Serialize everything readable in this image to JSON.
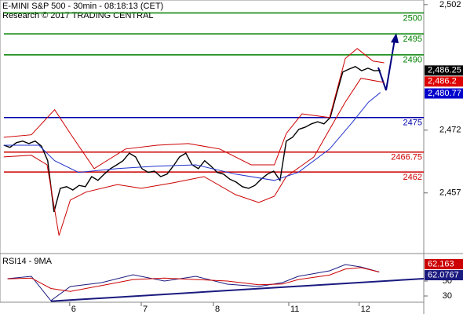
{
  "chart_data": {
    "type": "financial",
    "title": "E-MINI S&P 500 - 30min - 08:18:13 (CET)",
    "subtitle": "Research © 2017 TRADING CENTRAL",
    "xlim": [
      -0.6,
      66.9
    ],
    "xticks": [
      {
        "value": 10.5,
        "label": "6"
      },
      {
        "value": 21.9,
        "label": "7"
      },
      {
        "value": 33.4,
        "label": "8"
      },
      {
        "value": 45.4,
        "label": "11"
      },
      {
        "value": 56.6,
        "label": "12"
      }
    ],
    "ylim": [
      2442.7,
      2503.1
    ],
    "yticks": [
      {
        "value": 2502,
        "label": "2,502"
      },
      {
        "value": 2472,
        "label": "2,472"
      },
      {
        "value": 2457,
        "label": "2,457"
      }
    ],
    "levels": [
      {
        "value": 2500,
        "color": "#008000"
      },
      {
        "value": 2495,
        "color": "#008000"
      },
      {
        "value": 2490,
        "color": "#008000"
      },
      {
        "value": 2475,
        "color": "#0000aa"
      },
      {
        "value": 2466.75,
        "color": "#cc0000"
      },
      {
        "value": 2462,
        "color": "#cc0000"
      }
    ],
    "series": [
      {
        "name": "Price",
        "color": "#000000",
        "x": [
          0,
          1,
          2,
          3,
          4,
          5,
          6,
          7,
          8,
          9,
          10,
          11,
          12,
          13,
          14,
          15,
          16,
          17,
          18,
          19,
          20,
          21,
          22,
          23,
          24,
          25,
          26,
          27,
          28,
          29,
          30,
          31,
          32,
          33,
          34,
          35,
          36,
          37,
          38,
          39,
          40,
          41,
          42,
          43,
          44,
          45,
          46,
          47,
          48,
          49,
          50,
          51,
          52,
          53,
          54,
          55,
          56,
          57,
          58,
          59,
          60
        ],
        "values": [
          2468.4,
          2467.9,
          2469.0,
          2469.4,
          2468.8,
          2469.4,
          2468.2,
          2464.7,
          2452.5,
          2458.1,
          2458.5,
          2457.7,
          2458.8,
          2458.5,
          2460.9,
          2460.0,
          2461.5,
          2462.8,
          2463.7,
          2464.7,
          2466.5,
          2465.6,
          2462.8,
          2461.9,
          2462.2,
          2460.9,
          2461.5,
          2463.4,
          2465.6,
          2466.5,
          2463.7,
          2462.8,
          2464.7,
          2463.4,
          2461.9,
          2461.5,
          2460.3,
          2459.6,
          2458.5,
          2458.1,
          2458.8,
          2460.3,
          2461.5,
          2462.2,
          2460.0,
          2469.4,
          2470.3,
          2472.2,
          2472.7,
          2473.5,
          2474.0,
          2473.5,
          2475.0,
          2480.6,
          2485.9,
          2486.6,
          2487.2,
          2486.2,
          2486.8,
          2486.2,
          2486.25
        ]
      },
      {
        "name": "Upper band",
        "color": "#cc0000",
        "x": [
          0,
          4.4,
          8.1,
          10.6,
          14.4,
          19.4,
          24.4,
          29.4,
          34.4,
          39.4,
          43.1,
          45,
          47.5,
          51.9,
          54.4,
          56.3,
          58.8,
          60.6
        ],
        "values": [
          2470.3,
          2470.9,
          2476.9,
          2471.2,
          2462.8,
          2467.5,
          2468.4,
          2468.8,
          2467.5,
          2463.7,
          2463.7,
          2471.2,
          2475.9,
          2475.0,
          2489.1,
          2491.5,
          2488.5,
          2488.1
        ]
      },
      {
        "name": "Lower band",
        "color": "#cc0000",
        "x": [
          0,
          4.4,
          6.9,
          8.8,
          10.6,
          13.1,
          18.1,
          21.9,
          26.9,
          31.9,
          36.9,
          40.6,
          43.1,
          45,
          49.4,
          51.9,
          54.4,
          56.9,
          60.6
        ],
        "values": [
          2465.6,
          2466.0,
          2463.7,
          2446.8,
          2455.3,
          2457.2,
          2459.0,
          2458.1,
          2459.4,
          2460.9,
          2456.6,
          2454.7,
          2456.2,
          2460.9,
          2465.6,
          2472.2,
          2478.7,
          2484.4,
          2483.4
        ]
      },
      {
        "name": "Middle band",
        "color": "#2233cc",
        "x": [
          0,
          5.6,
          8.1,
          11.9,
          18.1,
          24.4,
          30.6,
          36.9,
          43.1,
          46.9,
          51.9,
          55.6,
          58.1,
          60
        ],
        "values": [
          2468.4,
          2468.4,
          2464.7,
          2461.9,
          2462.8,
          2463.4,
          2463.7,
          2461.5,
          2460.0,
          2461.9,
          2467.5,
          2474.0,
          2478.7,
          2481.0
        ]
      }
    ],
    "price_tags": [
      {
        "value": 2486.25,
        "label": "2,486.25",
        "color": "#000000"
      },
      {
        "value": 2486.2,
        "label": "2,486.2",
        "color": "#dd0000"
      },
      {
        "value": 2480.77,
        "label": "2,480.77",
        "color": "#0000cc"
      }
    ],
    "rsi": {
      "title": "RSI14 - 9MA",
      "ylim": [
        21.6,
        85.8
      ],
      "yticks": [
        50,
        30
      ],
      "series": [
        {
          "name": "RSI14",
          "color": "#1a1a80",
          "x": [
            0.6,
            4.4,
            7.5,
            10.6,
            15.6,
            20.6,
            25.6,
            30.6,
            35.6,
            40.6,
            44.4,
            46.9,
            51.9,
            54.4,
            56.9,
            59.8
          ],
          "values": [
            53.2,
            56.3,
            23.7,
            42.6,
            47.9,
            58.4,
            50,
            56.3,
            45.8,
            42.6,
            47.9,
            56.3,
            63.7,
            72.1,
            68.9,
            62.0767
          ]
        },
        {
          "name": "9MA",
          "color": "#cc0000",
          "x": [
            0.6,
            4.4,
            7.5,
            10.6,
            15.6,
            20.6,
            25.6,
            30.6,
            35.6,
            40.6,
            44.4,
            46.9,
            51.9,
            54.4,
            56.9,
            59.8
          ],
          "values": [
            53,
            54,
            40,
            36,
            44,
            52,
            54,
            52,
            50,
            45,
            46,
            52,
            58,
            66,
            68,
            62.163
          ]
        }
      ],
      "trendline": {
        "color": "#1a1a80",
        "x": [
          7.5,
          66.9
        ],
        "values": [
          23,
          53.2
        ]
      }
    }
  }
}
